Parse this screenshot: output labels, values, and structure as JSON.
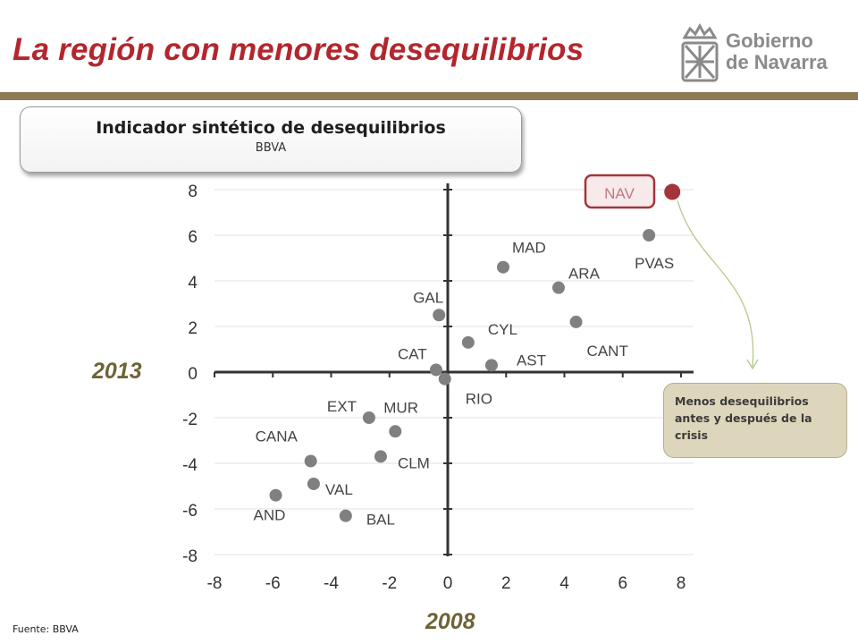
{
  "header": {
    "title": "La región con menores desequilibrios",
    "logo_line1": "Gobierno",
    "logo_line2": "de Navarra"
  },
  "box": {
    "title": "Indicador sintético de desequilibrios",
    "subtitle": "BBVA"
  },
  "note": "Menos desequilibrios antes y después de la crisis",
  "source": "Fuente: BBVA",
  "colors": {
    "title": "#b3262d",
    "rule": "#8c7b53",
    "point": "#808080",
    "highlight": "#a4343a",
    "year_label": "#6e6435",
    "note_bg": "#ddd6bc"
  },
  "chart_data": {
    "type": "scatter",
    "xlabel": "2008",
    "ylabel": "2013",
    "xlim": [
      -8,
      8
    ],
    "ylim": [
      -8,
      8
    ],
    "xticks": [
      "-8",
      "-6",
      "-4",
      "-2",
      "0",
      "2",
      "4",
      "6",
      "8"
    ],
    "yticks": [
      "8",
      "6",
      "4",
      "2",
      "0",
      "-2",
      "-4",
      "-6",
      "-8"
    ],
    "grid": "horizontal",
    "points": [
      {
        "label": "NAV",
        "x": 7.7,
        "y": 7.9,
        "highlight": true
      },
      {
        "label": "PVAS",
        "x": 6.9,
        "y": 6.0
      },
      {
        "label": "MAD",
        "x": 1.9,
        "y": 4.6
      },
      {
        "label": "ARA",
        "x": 3.8,
        "y": 3.7
      },
      {
        "label": "CANT",
        "x": 4.4,
        "y": 2.2
      },
      {
        "label": "GAL",
        "x": -0.3,
        "y": 2.5
      },
      {
        "label": "CYL",
        "x": 0.7,
        "y": 1.3
      },
      {
        "label": "CAT",
        "x": -0.4,
        "y": 0.1
      },
      {
        "label": "AST",
        "x": 1.5,
        "y": 0.3
      },
      {
        "label": "RIO",
        "x": -0.1,
        "y": -0.3
      },
      {
        "label": "EXT",
        "x": -2.7,
        "y": -2.0
      },
      {
        "label": "MUR",
        "x": -1.8,
        "y": -2.6
      },
      {
        "label": "CLM",
        "x": -2.3,
        "y": -3.7
      },
      {
        "label": "CANA",
        "x": -4.7,
        "y": -3.9
      },
      {
        "label": "VAL",
        "x": -4.6,
        "y": -4.9
      },
      {
        "label": "AND",
        "x": -5.9,
        "y": -5.4
      },
      {
        "label": "BAL",
        "x": -3.5,
        "y": -6.3
      }
    ]
  }
}
